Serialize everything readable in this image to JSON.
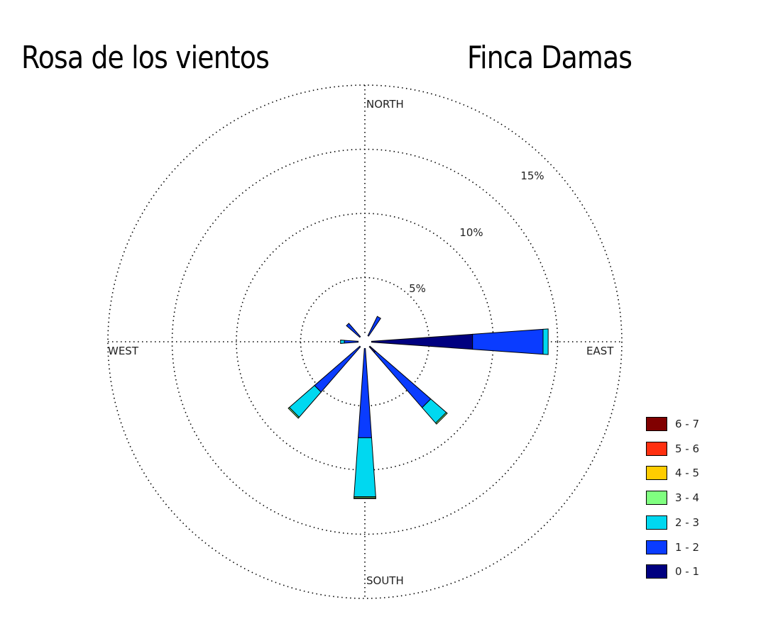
{
  "header": {
    "title_left": "Rosa de los vientos",
    "title_right": "Finca Damas"
  },
  "chart_data": {
    "type": "wind-rose",
    "title": "Rosa de los vientos",
    "subtitle": "Finca Damas",
    "directions": [
      "NORTH",
      "EAST",
      "SOUTH",
      "WEST"
    ],
    "ring_labels": [
      "5%",
      "10%",
      "15%"
    ],
    "rings": [
      5,
      10,
      15,
      20
    ],
    "max_percent": 20,
    "speed_bins": [
      {
        "label": "0 - 1",
        "color": "#000080"
      },
      {
        "label": "1 - 2",
        "color": "#0a3cff"
      },
      {
        "label": "2 - 3",
        "color": "#00d8f0"
      },
      {
        "label": "3 - 4",
        "color": "#80ff80"
      },
      {
        "label": "4 - 5",
        "color": "#ffcc00"
      },
      {
        "label": "5 - 6",
        "color": "#ff3010"
      },
      {
        "label": "6 - 7",
        "color": "#800000"
      }
    ],
    "sectors": [
      {
        "direction_deg": 30,
        "values": [
          0.4,
          1.8,
          0,
          0,
          0,
          0,
          0
        ]
      },
      {
        "direction_deg": 90,
        "values": [
          8.4,
          5.5,
          0.4,
          0,
          0,
          0,
          0
        ]
      },
      {
        "direction_deg": 135,
        "values": [
          1.1,
          5.7,
          1.6,
          0.1,
          0,
          0,
          0
        ]
      },
      {
        "direction_deg": 180,
        "values": [
          0.2,
          7.3,
          4.6,
          0.1,
          0.05,
          0,
          0
        ]
      },
      {
        "direction_deg": 225,
        "values": [
          0.2,
          5.0,
          2.6,
          0.1,
          0,
          0,
          0
        ]
      },
      {
        "direction_deg": 270,
        "values": [
          0.5,
          1.1,
          0.3,
          0,
          0,
          0,
          0
        ]
      },
      {
        "direction_deg": 315,
        "values": [
          0.3,
          1.6,
          0,
          0,
          0,
          0,
          0
        ]
      }
    ],
    "grid": true,
    "legend_position": "bottom-right"
  }
}
